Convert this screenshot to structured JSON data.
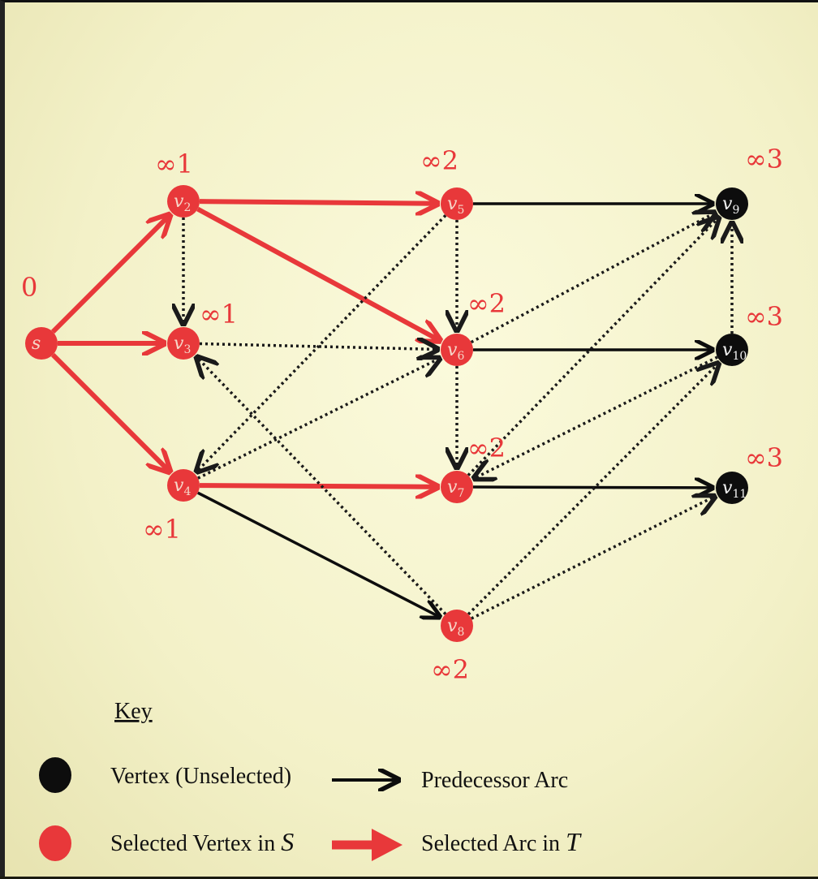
{
  "diagram": {
    "nodes": [
      {
        "id": "s",
        "base": "s",
        "sub": "",
        "state": "selected",
        "label": "0"
      },
      {
        "id": "v2",
        "base": "v",
        "sub": "2",
        "state": "selected",
        "label": "∞1"
      },
      {
        "id": "v3",
        "base": "v",
        "sub": "3",
        "state": "selected",
        "label": "∞1"
      },
      {
        "id": "v4",
        "base": "v",
        "sub": "4",
        "state": "selected",
        "label": "∞1"
      },
      {
        "id": "v5",
        "base": "v",
        "sub": "5",
        "state": "selected",
        "label": "∞2"
      },
      {
        "id": "v6",
        "base": "v",
        "sub": "6",
        "state": "selected",
        "label": "∞2"
      },
      {
        "id": "v7",
        "base": "v",
        "sub": "7",
        "state": "selected",
        "label": "∞2"
      },
      {
        "id": "v8",
        "base": "v",
        "sub": "8",
        "state": "selected",
        "label": "∞2"
      },
      {
        "id": "v9",
        "base": "v",
        "sub": "9",
        "state": "unselected",
        "label": "∞3"
      },
      {
        "id": "v10",
        "base": "v",
        "sub": "10",
        "state": "unselected",
        "label": "∞3"
      },
      {
        "id": "v11",
        "base": "v",
        "sub": "11",
        "state": "unselected",
        "label": "∞3"
      }
    ],
    "edges": [
      {
        "from": "s",
        "to": "v2",
        "style": "selected"
      },
      {
        "from": "s",
        "to": "v3",
        "style": "selected"
      },
      {
        "from": "s",
        "to": "v4",
        "style": "selected"
      },
      {
        "from": "v2",
        "to": "v5",
        "style": "selected"
      },
      {
        "from": "v2",
        "to": "v6",
        "style": "selected"
      },
      {
        "from": "v4",
        "to": "v7",
        "style": "selected"
      },
      {
        "from": "v5",
        "to": "v9",
        "style": "predecessor"
      },
      {
        "from": "v6",
        "to": "v10",
        "style": "predecessor"
      },
      {
        "from": "v7",
        "to": "v11",
        "style": "predecessor"
      },
      {
        "from": "v4",
        "to": "v8",
        "style": "predecessor"
      },
      {
        "from": "v2",
        "to": "v3",
        "style": "dotted"
      },
      {
        "from": "v3",
        "to": "v6",
        "style": "dotted"
      },
      {
        "from": "v5",
        "to": "v4",
        "style": "dotted"
      },
      {
        "from": "v4",
        "to": "v6",
        "style": "dotted"
      },
      {
        "from": "v5",
        "to": "v6",
        "style": "dotted"
      },
      {
        "from": "v6",
        "to": "v7",
        "style": "dotted"
      },
      {
        "from": "v8",
        "to": "v3",
        "style": "dotted"
      },
      {
        "from": "v6",
        "to": "v9",
        "style": "dotted"
      },
      {
        "from": "v7",
        "to": "v9",
        "style": "dotted"
      },
      {
        "from": "v10",
        "to": "v9",
        "style": "dotted"
      },
      {
        "from": "v10",
        "to": "v7",
        "style": "dotted"
      },
      {
        "from": "v8",
        "to": "v10",
        "style": "dotted"
      },
      {
        "from": "v8",
        "to": "v11",
        "style": "dotted"
      }
    ]
  },
  "key": {
    "title": "Key",
    "unselected_vertex": "Vertex (Unselected)",
    "predecessor_arc": "Predecessor Arc",
    "selected_vertex": "Selected Vertex in",
    "selected_vertex_set": "S",
    "selected_arc": "Selected Arc in",
    "selected_arc_set": "T"
  },
  "colors": {
    "selected": "#e8383a",
    "unselected": "#0d0d0d",
    "dotted": "#1a1a1a"
  }
}
